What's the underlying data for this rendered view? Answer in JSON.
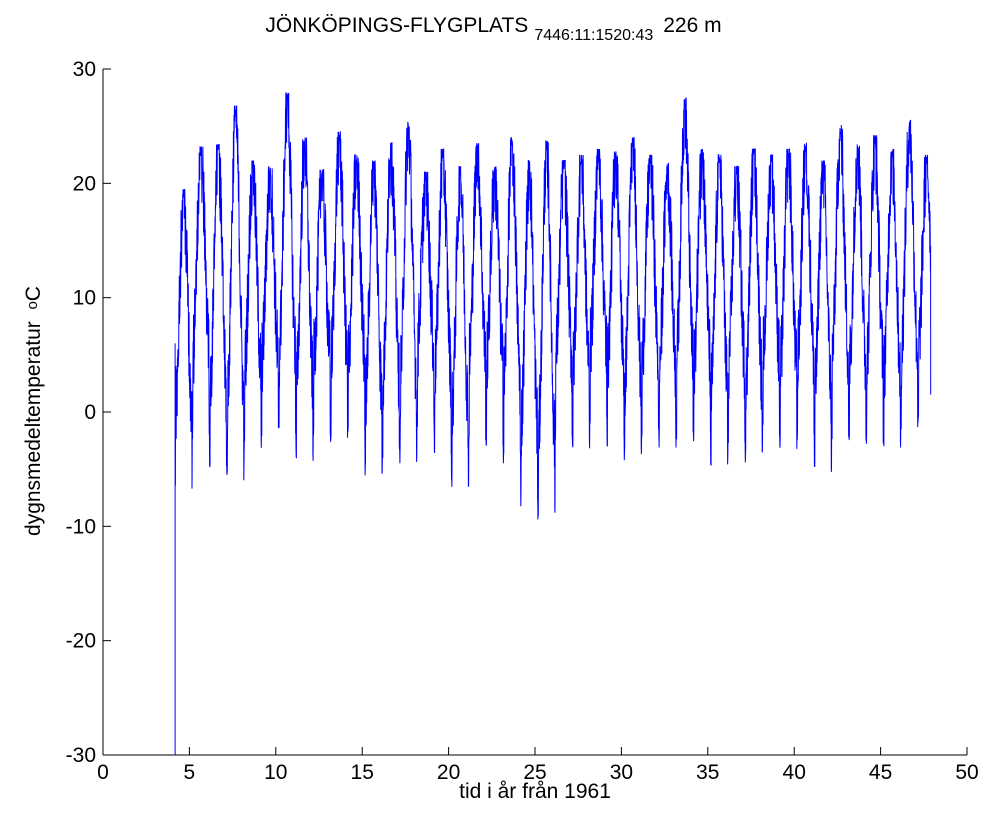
{
  "chart_data": {
    "type": "line",
    "title": "JÖNKÖPINGS-FLYGPLATS",
    "title_subscript": "7446:11:1520:43",
    "title_elevation": "226 m",
    "xlabel": "tid i år från 1961",
    "ylabel": "dygnsmedeltemperatur",
    "ylabel_unit_sup": "o",
    "ylabel_unit": "C",
    "xlim": [
      0,
      50
    ],
    "ylim": [
      -30,
      30
    ],
    "xticks": [
      0,
      5,
      10,
      15,
      20,
      25,
      30,
      35,
      40,
      45,
      50
    ],
    "yticks": [
      -30,
      -20,
      -10,
      0,
      10,
      20,
      30
    ],
    "grid": false,
    "line_color": "#0000ff",
    "series": [
      {
        "x_start": 4.17,
        "x_end": 47.9,
        "start_value": -30,
        "annual_max": [
          19.5,
          23.2,
          23.4,
          26.8,
          22.0,
          21.5,
          27.9,
          24.0,
          21.2,
          24.5,
          22.5,
          22.0,
          23.6,
          25.5,
          21.0,
          23.0,
          21.5,
          23.5,
          21.5,
          24.0,
          22.0,
          23.7,
          22.0,
          22.5,
          23.0,
          22.8,
          24.0,
          22.5,
          21.8,
          27.5,
          23.0,
          22.5,
          21.5,
          23.0,
          22.5,
          23.0,
          23.5,
          22.0,
          25.1,
          23.5,
          24.2,
          23.0,
          25.5,
          22.5
        ],
        "annual_min": [
          -6.8,
          -2.4,
          -5.7,
          -6.0,
          -3.5,
          -2.5,
          -2.0,
          -4.5,
          -2.5,
          -2.8,
          -2.5,
          -5.6,
          -4.2,
          -4.5,
          -1.5,
          -3.7,
          -7.2,
          -2.5,
          -3.0,
          -4.5,
          -8.3,
          -9.6,
          -2.5,
          -3.5,
          -1.5,
          -3.0,
          -4.5,
          -2.5,
          -3.2,
          -2.5,
          -3.0,
          -5.2,
          -3.0,
          -4.5,
          -2.5,
          -3.5,
          -2.5,
          -5.4,
          -2.5,
          -3.0,
          -2.8,
          -3.5,
          -2.0,
          -1.5
        ],
        "end_value": 1.5
      }
    ]
  }
}
